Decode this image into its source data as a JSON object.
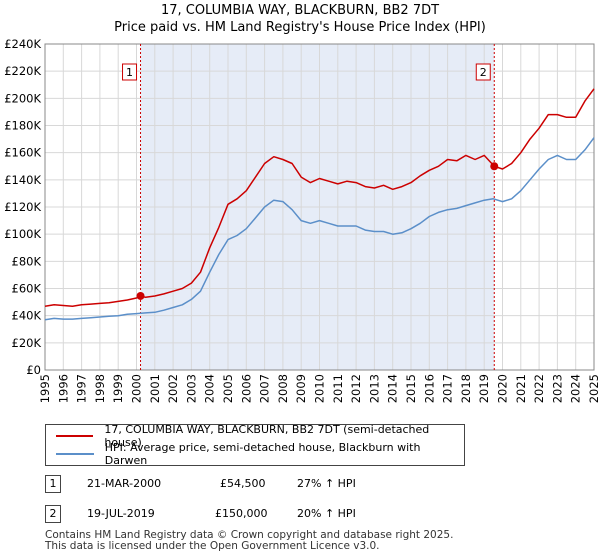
{
  "title_line1": "17, COLUMBIA WAY, BLACKBURN, BB2 7DT",
  "title_line2": "Price paid vs. HM Land Registry's House Price Index (HPI)",
  "chart_data": {
    "type": "line",
    "title": "17, COLUMBIA WAY, BLACKBURN, BB2 7DT",
    "subtitle": "Price paid vs. HM Land Registry's House Price Index (HPI)",
    "xlabel": "",
    "ylabel": "",
    "xlim": [
      1995,
      2025
    ],
    "ylim": [
      0,
      240000
    ],
    "yticks": [
      0,
      20000,
      40000,
      60000,
      80000,
      100000,
      120000,
      140000,
      160000,
      180000,
      200000,
      220000,
      240000
    ],
    "ytick_labels": [
      "£0",
      "£20K",
      "£40K",
      "£60K",
      "£80K",
      "£100K",
      "£120K",
      "£140K",
      "£160K",
      "£180K",
      "£200K",
      "£220K",
      "£240K"
    ],
    "xticks": [
      1995,
      1996,
      1997,
      1998,
      1999,
      2000,
      2001,
      2002,
      2003,
      2004,
      2005,
      2006,
      2007,
      2008,
      2009,
      2010,
      2011,
      2012,
      2013,
      2014,
      2015,
      2016,
      2017,
      2018,
      2019,
      2020,
      2021,
      2022,
      2023,
      2024,
      2025
    ],
    "grid": true,
    "shaded_region": [
      2000.22,
      2019.55
    ],
    "series": [
      {
        "name": "17, COLUMBIA WAY, BLACKBURN, BB2 7DT (semi-detached house)",
        "color": "#cc0000",
        "x": [
          1995.0,
          1995.5,
          1996.0,
          1996.5,
          1997.0,
          1997.5,
          1998.0,
          1998.5,
          1999.0,
          1999.5,
          2000.0,
          2000.22,
          2000.5,
          2001.0,
          2001.5,
          2002.0,
          2002.5,
          2003.0,
          2003.5,
          2004.0,
          2004.5,
          2005.0,
          2005.5,
          2006.0,
          2006.5,
          2007.0,
          2007.5,
          2008.0,
          2008.5,
          2009.0,
          2009.5,
          2010.0,
          2010.5,
          2011.0,
          2011.5,
          2012.0,
          2012.5,
          2013.0,
          2013.5,
          2014.0,
          2014.5,
          2015.0,
          2015.5,
          2016.0,
          2016.5,
          2017.0,
          2017.5,
          2018.0,
          2018.5,
          2019.0,
          2019.55,
          2020.0,
          2020.5,
          2021.0,
          2021.5,
          2022.0,
          2022.5,
          2023.0,
          2023.5,
          2024.0,
          2024.5,
          2025.0
        ],
        "values": [
          47000,
          48000,
          47500,
          47000,
          48000,
          48500,
          49000,
          49500,
          50500,
          51500,
          53000,
          54500,
          53500,
          54500,
          56000,
          58000,
          60000,
          64000,
          72000,
          90000,
          105000,
          122000,
          126000,
          132000,
          142000,
          152000,
          157000,
          155000,
          152000,
          142000,
          138000,
          141000,
          139000,
          137000,
          139000,
          138000,
          135000,
          134000,
          136000,
          133000,
          135000,
          138000,
          143000,
          147000,
          150000,
          155000,
          154000,
          158000,
          155000,
          158000,
          150000,
          148000,
          152000,
          160000,
          170000,
          178000,
          188000,
          188000,
          186000,
          186000,
          198000,
          207000
        ]
      },
      {
        "name": "HPI: Average price, semi-detached house, Blackburn with Darwen",
        "color": "#5b8fc9",
        "x": [
          1995.0,
          1995.5,
          1996.0,
          1996.5,
          1997.0,
          1997.5,
          1998.0,
          1998.5,
          1999.0,
          1999.5,
          2000.0,
          2000.5,
          2001.0,
          2001.5,
          2002.0,
          2002.5,
          2003.0,
          2003.5,
          2004.0,
          2004.5,
          2005.0,
          2005.5,
          2006.0,
          2006.5,
          2007.0,
          2007.5,
          2008.0,
          2008.5,
          2009.0,
          2009.5,
          2010.0,
          2010.5,
          2011.0,
          2011.5,
          2012.0,
          2012.5,
          2013.0,
          2013.5,
          2014.0,
          2014.5,
          2015.0,
          2015.5,
          2016.0,
          2016.5,
          2017.0,
          2017.5,
          2018.0,
          2018.5,
          2019.0,
          2019.5,
          2020.0,
          2020.5,
          2021.0,
          2021.5,
          2022.0,
          2022.5,
          2023.0,
          2023.5,
          2024.0,
          2024.5,
          2025.0
        ],
        "values": [
          37000,
          38000,
          37500,
          37500,
          38000,
          38500,
          39000,
          39500,
          40000,
          41000,
          41500,
          42000,
          42500,
          44000,
          46000,
          48000,
          52000,
          58000,
          72000,
          85000,
          96000,
          99000,
          104000,
          112000,
          120000,
          125000,
          124000,
          118000,
          110000,
          108000,
          110000,
          108000,
          106000,
          106000,
          106000,
          103000,
          102000,
          102000,
          100000,
          101000,
          104000,
          108000,
          113000,
          116000,
          118000,
          119000,
          121000,
          123000,
          125000,
          126000,
          124000,
          126000,
          132000,
          140000,
          148000,
          155000,
          158000,
          155000,
          155000,
          162000,
          171000
        ]
      }
    ],
    "annotations": [
      {
        "label": "1",
        "x": 2000.22,
        "value": 54500
      },
      {
        "label": "2",
        "x": 2019.55,
        "value": 150000
      }
    ]
  },
  "legend": {
    "series1_label": "17, COLUMBIA WAY, BLACKBURN, BB2 7DT (semi-detached house)",
    "series2_label": "HPI: Average price, semi-detached house, Blackburn with Darwen"
  },
  "transactions": [
    {
      "num": "1",
      "date": "21-MAR-2000",
      "price": "£54,500",
      "hpi": "27% ↑ HPI"
    },
    {
      "num": "2",
      "date": "19-JUL-2019",
      "price": "£150,000",
      "hpi": "20% ↑ HPI"
    }
  ],
  "footer_line1": "Contains HM Land Registry data © Crown copyright and database right 2025.",
  "footer_line2": "This data is licensed under the Open Government Licence v3.0."
}
